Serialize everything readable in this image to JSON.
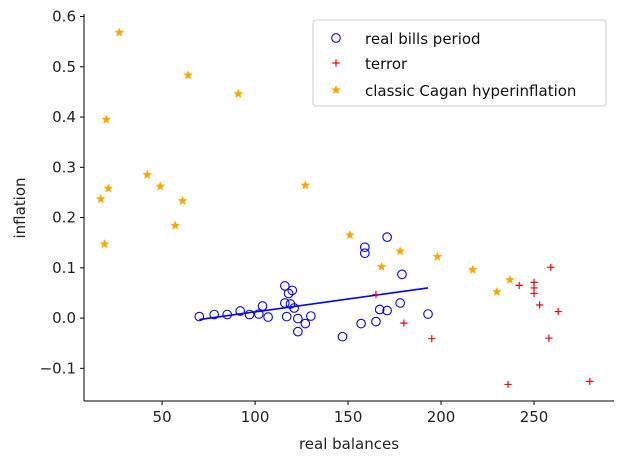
{
  "chart_data": {
    "type": "scatter",
    "xlabel": "real balances",
    "ylabel": "inflation",
    "xlim": [
      8,
      293
    ],
    "ylim": [
      -0.165,
      0.605
    ],
    "x_ticks": [
      50,
      100,
      150,
      200,
      250
    ],
    "x_tick_labels": [
      "50",
      "100",
      "150",
      "200",
      "250"
    ],
    "y_ticks": [
      -0.1,
      0.0,
      0.1,
      0.2,
      0.3,
      0.4,
      0.5,
      0.6
    ],
    "y_tick_labels": [
      "−0.1",
      "0.0",
      "0.1",
      "0.2",
      "0.3",
      "0.4",
      "0.5",
      "0.6"
    ],
    "grid": false,
    "legend_position": "top-right",
    "series": [
      {
        "name": "real bills period",
        "marker": "open-circle",
        "color": "#0000ff",
        "points": [
          [
            70,
            0.003
          ],
          [
            78,
            0.007
          ],
          [
            85,
            0.007
          ],
          [
            92,
            0.014
          ],
          [
            97,
            0.007
          ],
          [
            102,
            0.008
          ],
          [
            104,
            0.024
          ],
          [
            107,
            0.002
          ],
          [
            116,
            0.064
          ],
          [
            116,
            0.03
          ],
          [
            117,
            0.003
          ],
          [
            118,
            0.049
          ],
          [
            119,
            0.028
          ],
          [
            120,
            0.055
          ],
          [
            121,
            0.02
          ],
          [
            123,
            -0.001
          ],
          [
            123,
            -0.027
          ],
          [
            127,
            -0.011
          ],
          [
            130,
            0.004
          ],
          [
            147,
            -0.037
          ],
          [
            157,
            -0.011
          ],
          [
            159,
            0.141
          ],
          [
            159,
            0.129
          ],
          [
            165,
            -0.007
          ],
          [
            167,
            0.017
          ],
          [
            171,
            0.161
          ],
          [
            171,
            0.015
          ],
          [
            179,
            0.087
          ],
          [
            178,
            0.03
          ],
          [
            193,
            0.008
          ]
        ]
      },
      {
        "name": "terror",
        "marker": "plus",
        "color": "#ff0000",
        "points": [
          [
            165,
            0.047
          ],
          [
            180,
            -0.01
          ],
          [
            195,
            -0.041
          ],
          [
            236,
            -0.132
          ],
          [
            242,
            0.065
          ],
          [
            250,
            0.071
          ],
          [
            250,
            0.06
          ],
          [
            250,
            0.049
          ],
          [
            253,
            0.026
          ],
          [
            258,
            -0.04
          ],
          [
            259,
            0.101
          ],
          [
            263,
            0.013
          ],
          [
            280,
            -0.126
          ]
        ]
      },
      {
        "name": "classic Cagan hyperinflation",
        "marker": "star",
        "color": "#ffa500",
        "points": [
          [
            17,
            0.237
          ],
          [
            19,
            0.147
          ],
          [
            20,
            0.395
          ],
          [
            21,
            0.258
          ],
          [
            27,
            0.568
          ],
          [
            42,
            0.285
          ],
          [
            49,
            0.262
          ],
          [
            57,
            0.184
          ],
          [
            61,
            0.233
          ],
          [
            64,
            0.483
          ],
          [
            91,
            0.446
          ],
          [
            127,
            0.264
          ],
          [
            151,
            0.165
          ],
          [
            168,
            0.102
          ],
          [
            178,
            0.133
          ],
          [
            198,
            0.122
          ],
          [
            217,
            0.096
          ],
          [
            230,
            0.052
          ],
          [
            237,
            0.076
          ]
        ]
      }
    ],
    "fit_line": {
      "color": "#0000ff",
      "x": [
        70,
        193
      ],
      "y": [
        -0.003,
        0.06
      ]
    }
  }
}
